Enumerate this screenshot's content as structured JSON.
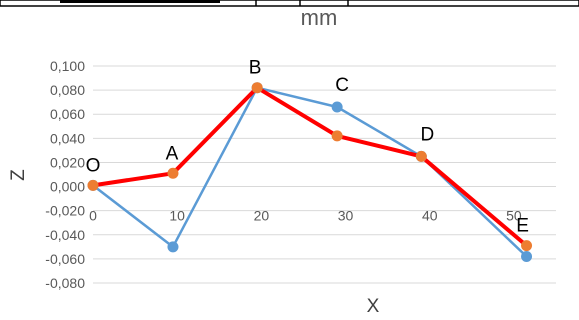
{
  "chart_data": {
    "type": "scatter",
    "title": "mm",
    "xlabel": "X",
    "ylabel": "Z",
    "xlim": [
      0,
      55
    ],
    "ylim": [
      -0.08,
      0.1
    ],
    "xticks": [
      "0",
      "10",
      "20",
      "30",
      "40",
      "50"
    ],
    "yticks": [
      "0,100",
      "0,080",
      "0,060",
      "0,040",
      "0,020",
      "0,000",
      "-0,020",
      "-0,040",
      "-0,060",
      "-0,080"
    ],
    "grid": true,
    "legend": "none",
    "series": [
      {
        "color": "#5b9bd5",
        "x": [
          0,
          9.5,
          19.5,
          29,
          39,
          51.5
        ],
        "y": [
          0.001,
          -0.05,
          0.082,
          0.066,
          0.025,
          -0.058
        ]
      },
      {
        "color": "#ff0000",
        "marker_color": "#ed7d31",
        "x": [
          0,
          9.5,
          19.5,
          29,
          39,
          51.5
        ],
        "y": [
          0.001,
          0.011,
          0.082,
          0.042,
          0.025,
          -0.049
        ]
      }
    ],
    "point_labels": [
      "O",
      "A",
      "B",
      "C",
      "D",
      "E"
    ]
  },
  "table_header": {
    "cell1": "",
    "cell2": "",
    "cell3": ""
  }
}
